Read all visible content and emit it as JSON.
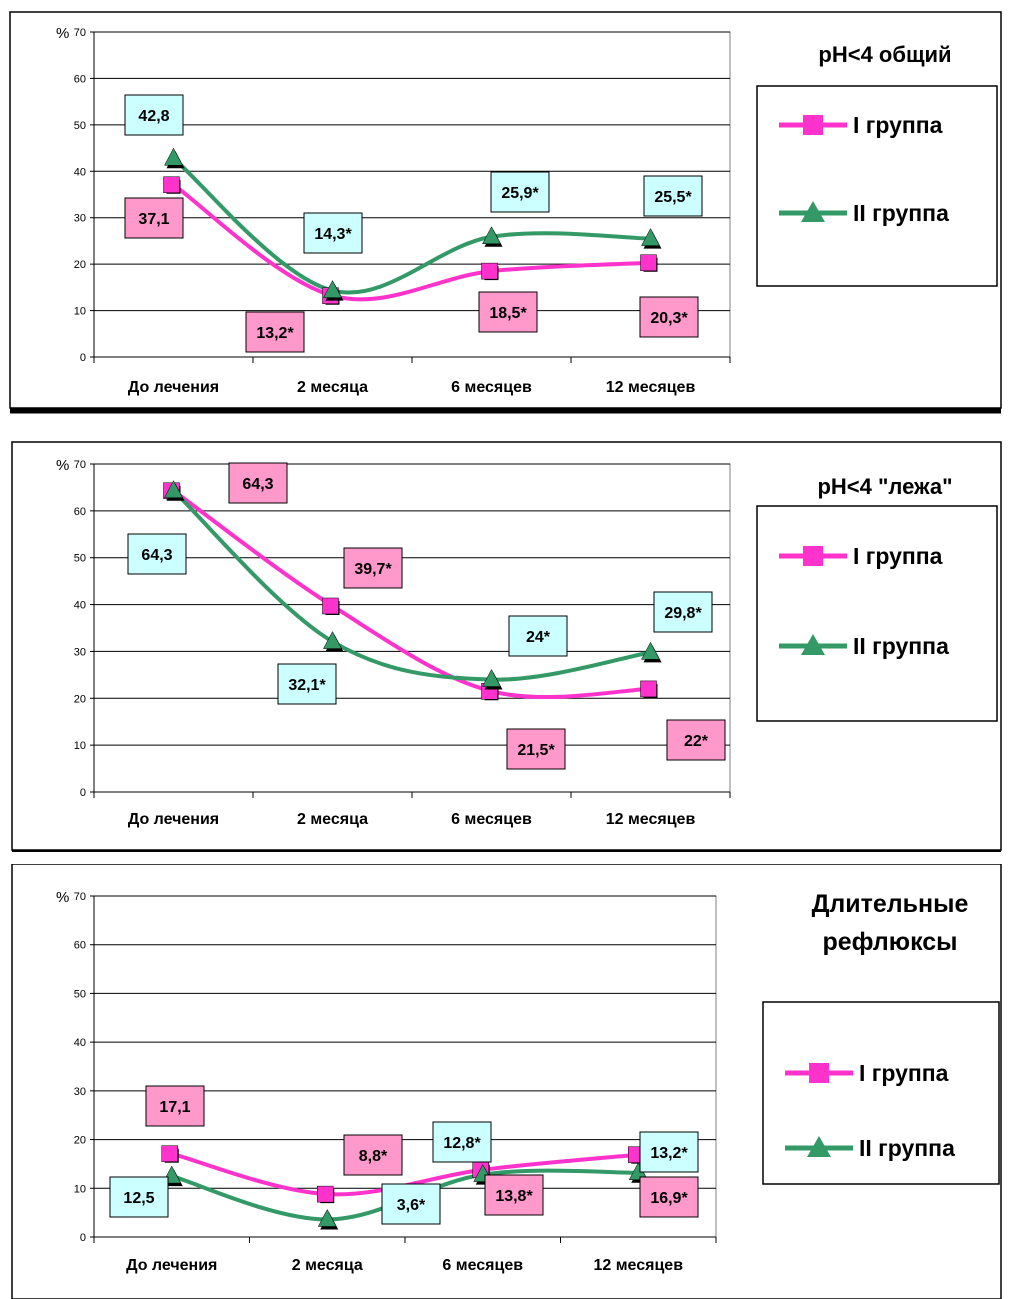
{
  "chart_data": [
    {
      "type": "line",
      "title": "рН<4 общий",
      "ylabel": "%",
      "ylim": [
        0,
        70
      ],
      "yticks": [
        "0",
        "10",
        "20",
        "30",
        "40",
        "50",
        "60",
        "70"
      ],
      "categories": [
        "До лечения",
        "2 месяца",
        "6 месяцев",
        "12 месяцев"
      ],
      "series": [
        {
          "name": "I группа",
          "values": [
            37.1,
            13.2,
            18.5,
            20.3
          ],
          "labels": [
            "37,1",
            "13,2*",
            "18,5*",
            "20,3*"
          ]
        },
        {
          "name": "II группа",
          "values": [
            42.8,
            14.3,
            25.9,
            25.5
          ],
          "labels": [
            "42,8",
            "14,3*",
            "25,9*",
            "25,5*"
          ]
        }
      ],
      "grid": true,
      "legend": "right"
    },
    {
      "type": "line",
      "title": "рН<4  \"лежа\"",
      "ylabel": "%",
      "ylim": [
        0,
        70
      ],
      "yticks": [
        "0",
        "10",
        "20",
        "30",
        "40",
        "50",
        "60",
        "70"
      ],
      "categories": [
        "До лечения",
        "2 месяца",
        "6 месяцев",
        "12 месяцев"
      ],
      "series": [
        {
          "name": "I группа",
          "values": [
            64.3,
            39.7,
            21.5,
            22
          ],
          "labels": [
            "64,3",
            "39,7*",
            "21,5*",
            "22*"
          ]
        },
        {
          "name": "II группа",
          "values": [
            64.3,
            32.1,
            24,
            29.8
          ],
          "labels": [
            "64,3",
            "32,1*",
            "24*",
            "29,8*"
          ]
        }
      ],
      "grid": true,
      "legend": "right"
    },
    {
      "type": "line",
      "title": "Длительные рефлюксы",
      "ylabel": "%",
      "ylim": [
        0,
        70
      ],
      "yticks": [
        "0",
        "10",
        "20",
        "30",
        "40",
        "50",
        "60",
        "70"
      ],
      "categories": [
        "До лечения",
        "2 месяца",
        "6 месяцев",
        "12 месяцев"
      ],
      "series": [
        {
          "name": "I группа",
          "values": [
            17.1,
            8.8,
            13.8,
            16.9
          ],
          "labels": [
            "17,1",
            "8,8*",
            "13,8*",
            "16,9*"
          ]
        },
        {
          "name": "II группа",
          "values": [
            12.5,
            3.6,
            12.8,
            13.2
          ],
          "labels": [
            "12,5",
            "3,6*",
            "12,8*",
            "13,2*"
          ]
        }
      ],
      "grid": true,
      "legend": "right"
    }
  ],
  "colors": {
    "series1_line": "#ff33cc",
    "series2_line": "#339966",
    "label1_fill": "#ff99cc",
    "label2_fill": "#ccffff"
  }
}
